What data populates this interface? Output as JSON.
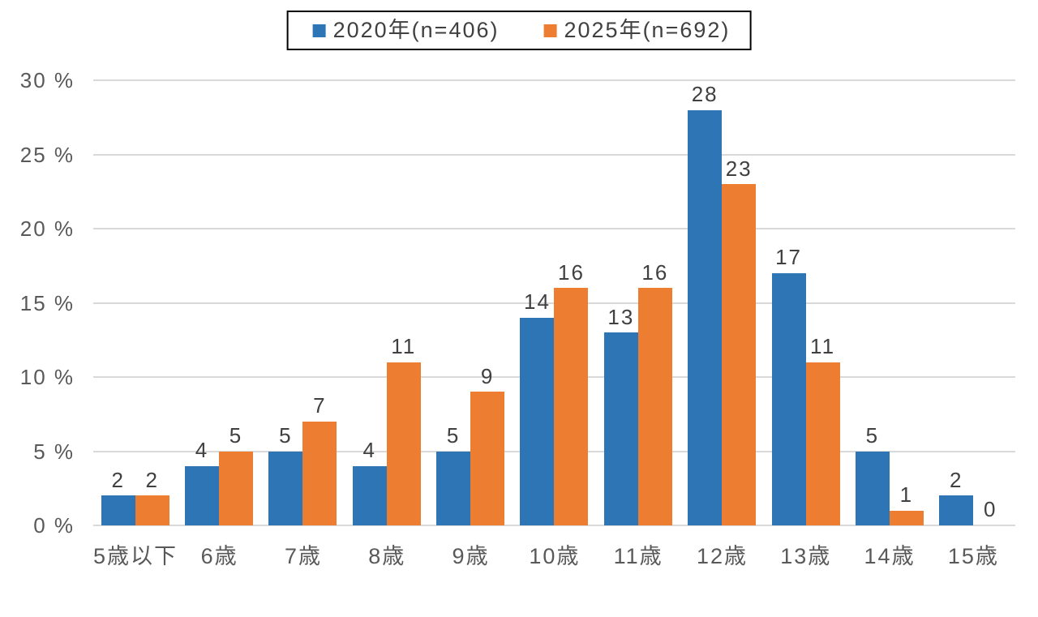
{
  "chart_data": {
    "type": "bar",
    "title": "",
    "xlabel": "",
    "ylabel": "%",
    "categories": [
      "5歳以下",
      "6歳",
      "7歳",
      "8歳",
      "9歳",
      "10歳",
      "11歳",
      "12歳",
      "13歳",
      "14歳",
      "15歳"
    ],
    "series": [
      {
        "key": "2020",
        "name": "2020年(n=406)",
        "color": "#2E75B6",
        "values": [
          2,
          4,
          5,
          4,
          5,
          14,
          13,
          28,
          17,
          5,
          2
        ]
      },
      {
        "key": "2025",
        "name": "2025年(n=692)",
        "color": "#ED7D31",
        "values": [
          2,
          5,
          7,
          11,
          9,
          16,
          16,
          23,
          11,
          1,
          0
        ]
      }
    ],
    "ylim": [
      0,
      30
    ],
    "ytick_step": 5,
    "ytick_labels": [
      "0 %",
      "5 %",
      "10 %",
      "15 %",
      "20 %",
      "25 %",
      "30 %"
    ],
    "grid": true,
    "legend_position": "top-center",
    "data_labels": true
  },
  "colors": {
    "series_2020": "#2E75B6",
    "series_2025": "#ED7D31",
    "gridline": "#D9D9D9",
    "axis_label_text": "#595959",
    "data_label_text": "#404040",
    "legend_border": "#000000",
    "background": "#FFFFFF"
  }
}
